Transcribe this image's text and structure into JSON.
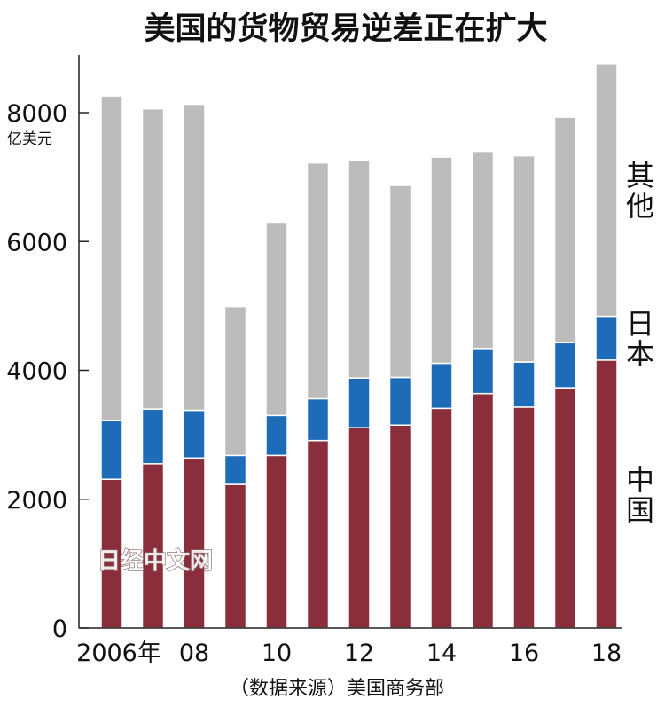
{
  "chart_data": {
    "type": "bar",
    "stacked": true,
    "title": "美国的货物贸易逆差正在扩大",
    "unit": "亿美元",
    "source": "（数据来源）美国商务部",
    "watermark": "日经中文网",
    "ylim": [
      0,
      8800
    ],
    "yticks": [
      0,
      2000,
      4000,
      6000,
      8000
    ],
    "ytick_labels": [
      "0",
      "2000",
      "4000",
      "6000",
      "8000"
    ],
    "categories": [
      "2006",
      "2007",
      "2008",
      "2009",
      "2010",
      "2011",
      "2012",
      "2013",
      "2014",
      "2015",
      "2016",
      "2017",
      "2018"
    ],
    "xtick_labels": [
      {
        "index": 0,
        "label": "2006年"
      },
      {
        "index": 2,
        "label": "08"
      },
      {
        "index": 4,
        "label": "10"
      },
      {
        "index": 6,
        "label": "12"
      },
      {
        "index": 8,
        "label": "14"
      },
      {
        "index": 10,
        "label": "16"
      },
      {
        "index": 12,
        "label": "18"
      }
    ],
    "grid": false,
    "legend_placement": "right",
    "series": [
      {
        "name": "中国",
        "color": "#8a2e3b",
        "values": [
          2310,
          2550,
          2640,
          2230,
          2680,
          2910,
          3110,
          3150,
          3410,
          3640,
          3430,
          3730,
          4160
        ]
      },
      {
        "name": "日本",
        "color": "#1e6cb8",
        "values": [
          910,
          850,
          740,
          450,
          620,
          650,
          770,
          740,
          700,
          700,
          700,
          700,
          680
        ]
      },
      {
        "name": "其他",
        "color": "#bcbcbc",
        "values": [
          5040,
          4660,
          4750,
          2310,
          3000,
          3660,
          3380,
          2980,
          3200,
          3060,
          3200,
          3500,
          3920
        ]
      }
    ]
  }
}
